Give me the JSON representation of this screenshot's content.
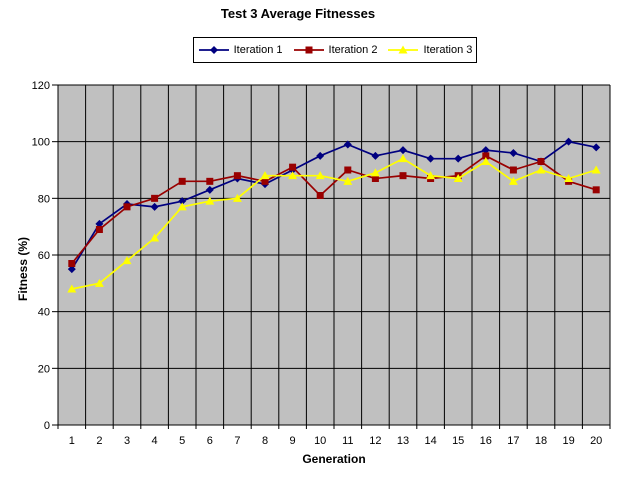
{
  "title": "Test 3 Average Fitnesses",
  "axis_titles": {
    "x": "Generation",
    "y": "Fitness (%)"
  },
  "chart_data": {
    "type": "line",
    "title": "Test 3 Average Fitnesses",
    "xlabel": "Generation",
    "ylabel": "Fitness (%)",
    "x": [
      1,
      2,
      3,
      4,
      5,
      6,
      7,
      8,
      9,
      10,
      11,
      12,
      13,
      14,
      15,
      16,
      17,
      18,
      19,
      20
    ],
    "ylim": [
      0,
      120
    ],
    "ytick_step": 20,
    "yticks": [
      0,
      20,
      40,
      60,
      80,
      100,
      120
    ],
    "grid": true,
    "legend_position": "top",
    "plot_bg_color": "#c0c0c0",
    "grid_color": "#000000",
    "series": [
      {
        "name": "Iteration 1",
        "color": "#000080",
        "marker": "diamond",
        "values": [
          55,
          71,
          78,
          77,
          79,
          83,
          87,
          85,
          90,
          95,
          99,
          95,
          97,
          94,
          94,
          97,
          96,
          93,
          100,
          98
        ]
      },
      {
        "name": "Iteration 2",
        "color": "#990000",
        "marker": "square",
        "values": [
          57,
          69,
          77,
          80,
          86,
          86,
          88,
          86,
          91,
          81,
          90,
          87,
          88,
          87,
          88,
          95,
          90,
          93,
          86,
          83
        ]
      },
      {
        "name": "Iteration 3",
        "color": "#ffff00",
        "marker": "triangle",
        "values": [
          48,
          50,
          58,
          66,
          77,
          79,
          80,
          88,
          88,
          88,
          86,
          89,
          94,
          88,
          87,
          93,
          86,
          90,
          87,
          90
        ]
      }
    ]
  }
}
